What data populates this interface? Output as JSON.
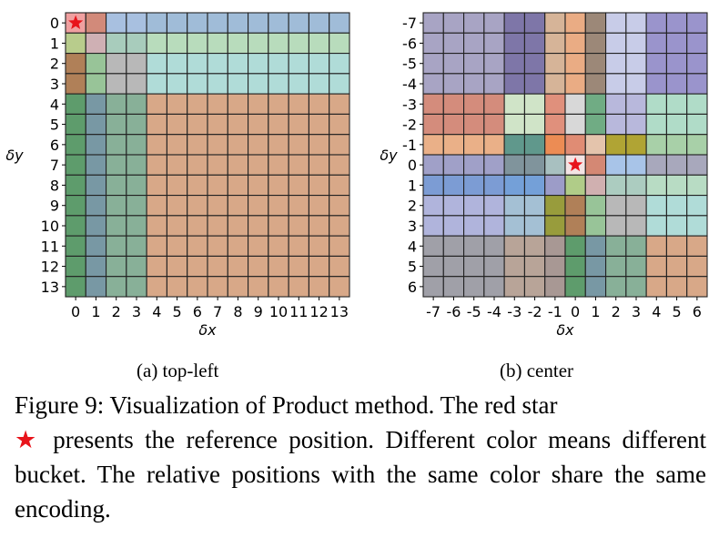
{
  "figure": {
    "subcaption_a": "(a) top-left",
    "subcaption_b": "(b) center",
    "caption_part1": "Figure 9:  Visualization of Product method.  The red star",
    "caption_star": "★",
    "caption_part2": " presents the reference position.  Different color means different bucket. The relative positions with the same color share the same encoding."
  },
  "chart_data": [
    {
      "type": "heatmap",
      "title": "",
      "xlabel": "δx",
      "ylabel": "δy",
      "x_ticks": [
        0,
        1,
        2,
        3,
        4,
        5,
        6,
        7,
        8,
        9,
        10,
        11,
        12,
        13
      ],
      "y_ticks": [
        0,
        1,
        2,
        3,
        4,
        5,
        6,
        7,
        8,
        9,
        10,
        11,
        12,
        13
      ],
      "reference": {
        "x": 0,
        "y": 0,
        "marker": "red star"
      },
      "x_buckets": [
        [
          0
        ],
        [
          1
        ],
        [
          2,
          3
        ],
        [
          4,
          5,
          6,
          7,
          8,
          9,
          10,
          11,
          12,
          13
        ]
      ],
      "y_buckets": [
        [
          0
        ],
        [
          1
        ],
        [
          2,
          3
        ],
        [
          4,
          5,
          6,
          7,
          8,
          9,
          10,
          11,
          12,
          13
        ]
      ],
      "bucket_colors": [
        [
          "#f0a0a0",
          "#d28a7a",
          "#a8c0e0",
          "#a0bcd8"
        ],
        [
          "#b8cc8c",
          "#cfb0b4",
          "#a8ccbc",
          "#b8dcbc"
        ],
        [
          "#b08058",
          "#98c498",
          "#b8b8b8",
          "#b0dcd8"
        ],
        [
          "#5e9c6c",
          "#7898a4",
          "#88b098",
          "#d8a888"
        ]
      ],
      "ylim": [
        0,
        13
      ],
      "xlim": [
        0,
        13
      ],
      "y_inverted": true,
      "grid": true
    },
    {
      "type": "heatmap",
      "title": "",
      "xlabel": "δx",
      "ylabel": "δy",
      "x_ticks": [
        -7,
        -6,
        -5,
        -4,
        -3,
        -2,
        -1,
        0,
        1,
        2,
        3,
        4,
        5,
        6
      ],
      "y_ticks": [
        -7,
        -6,
        -5,
        -4,
        -3,
        -2,
        -1,
        0,
        1,
        2,
        3,
        4,
        5,
        6
      ],
      "reference": {
        "x": 0,
        "y": 0,
        "marker": "red star"
      },
      "x_buckets": [
        [
          -7,
          -6,
          -5,
          -4
        ],
        [
          -3,
          -2
        ],
        [
          -1
        ],
        [
          0
        ],
        [
          1
        ],
        [
          2,
          3
        ],
        [
          4,
          5,
          6
        ]
      ],
      "y_buckets": [
        [
          -7,
          -6,
          -5,
          -4
        ],
        [
          -3,
          -2
        ],
        [
          -1
        ],
        [
          0
        ],
        [
          1
        ],
        [
          2,
          3
        ],
        [
          4,
          5,
          6
        ]
      ],
      "bucket_colors": [
        [
          "#a8a4c4",
          "#7e76a8",
          "#d6b498",
          "#eaac84",
          "#9c8878",
          "#c8cce8",
          "#9a94cc"
        ],
        [
          "#d48c7c",
          "#d0e4c8",
          "#e0907c",
          "#d8d8d8",
          "#70ac84",
          "#b8b8dc",
          "#b0dcc8"
        ],
        [
          "#eab088",
          "#60988c",
          "#ec8c54",
          "#e08c74",
          "#e4c4ac",
          "#b0a434",
          "#a8d0a8"
        ],
        [
          "#a0a0c8",
          "#80949c",
          "#a8c0c0",
          "#f4e4e4",
          "#d48874",
          "#a8c4e8",
          "#a8a8bc"
        ],
        [
          "#7c9cd4",
          "#74a0d8",
          "#9c9cc8",
          "#b0cc88",
          "#d0b0b0",
          "#acccc0",
          "#b8dcc4"
        ],
        [
          "#b0b4dc",
          "#a4c0d4",
          "#989c3c",
          "#b08058",
          "#98c498",
          "#b8b8b8",
          "#b0dcd8"
        ],
        [
          "#a0a0a8",
          "#b8a498",
          "#a89894",
          "#5e9c6c",
          "#7898a4",
          "#88b098",
          "#d8a888"
        ]
      ],
      "ylim": [
        -7,
        6
      ],
      "xlim": [
        -7,
        6
      ],
      "y_inverted": true,
      "grid": true
    }
  ]
}
